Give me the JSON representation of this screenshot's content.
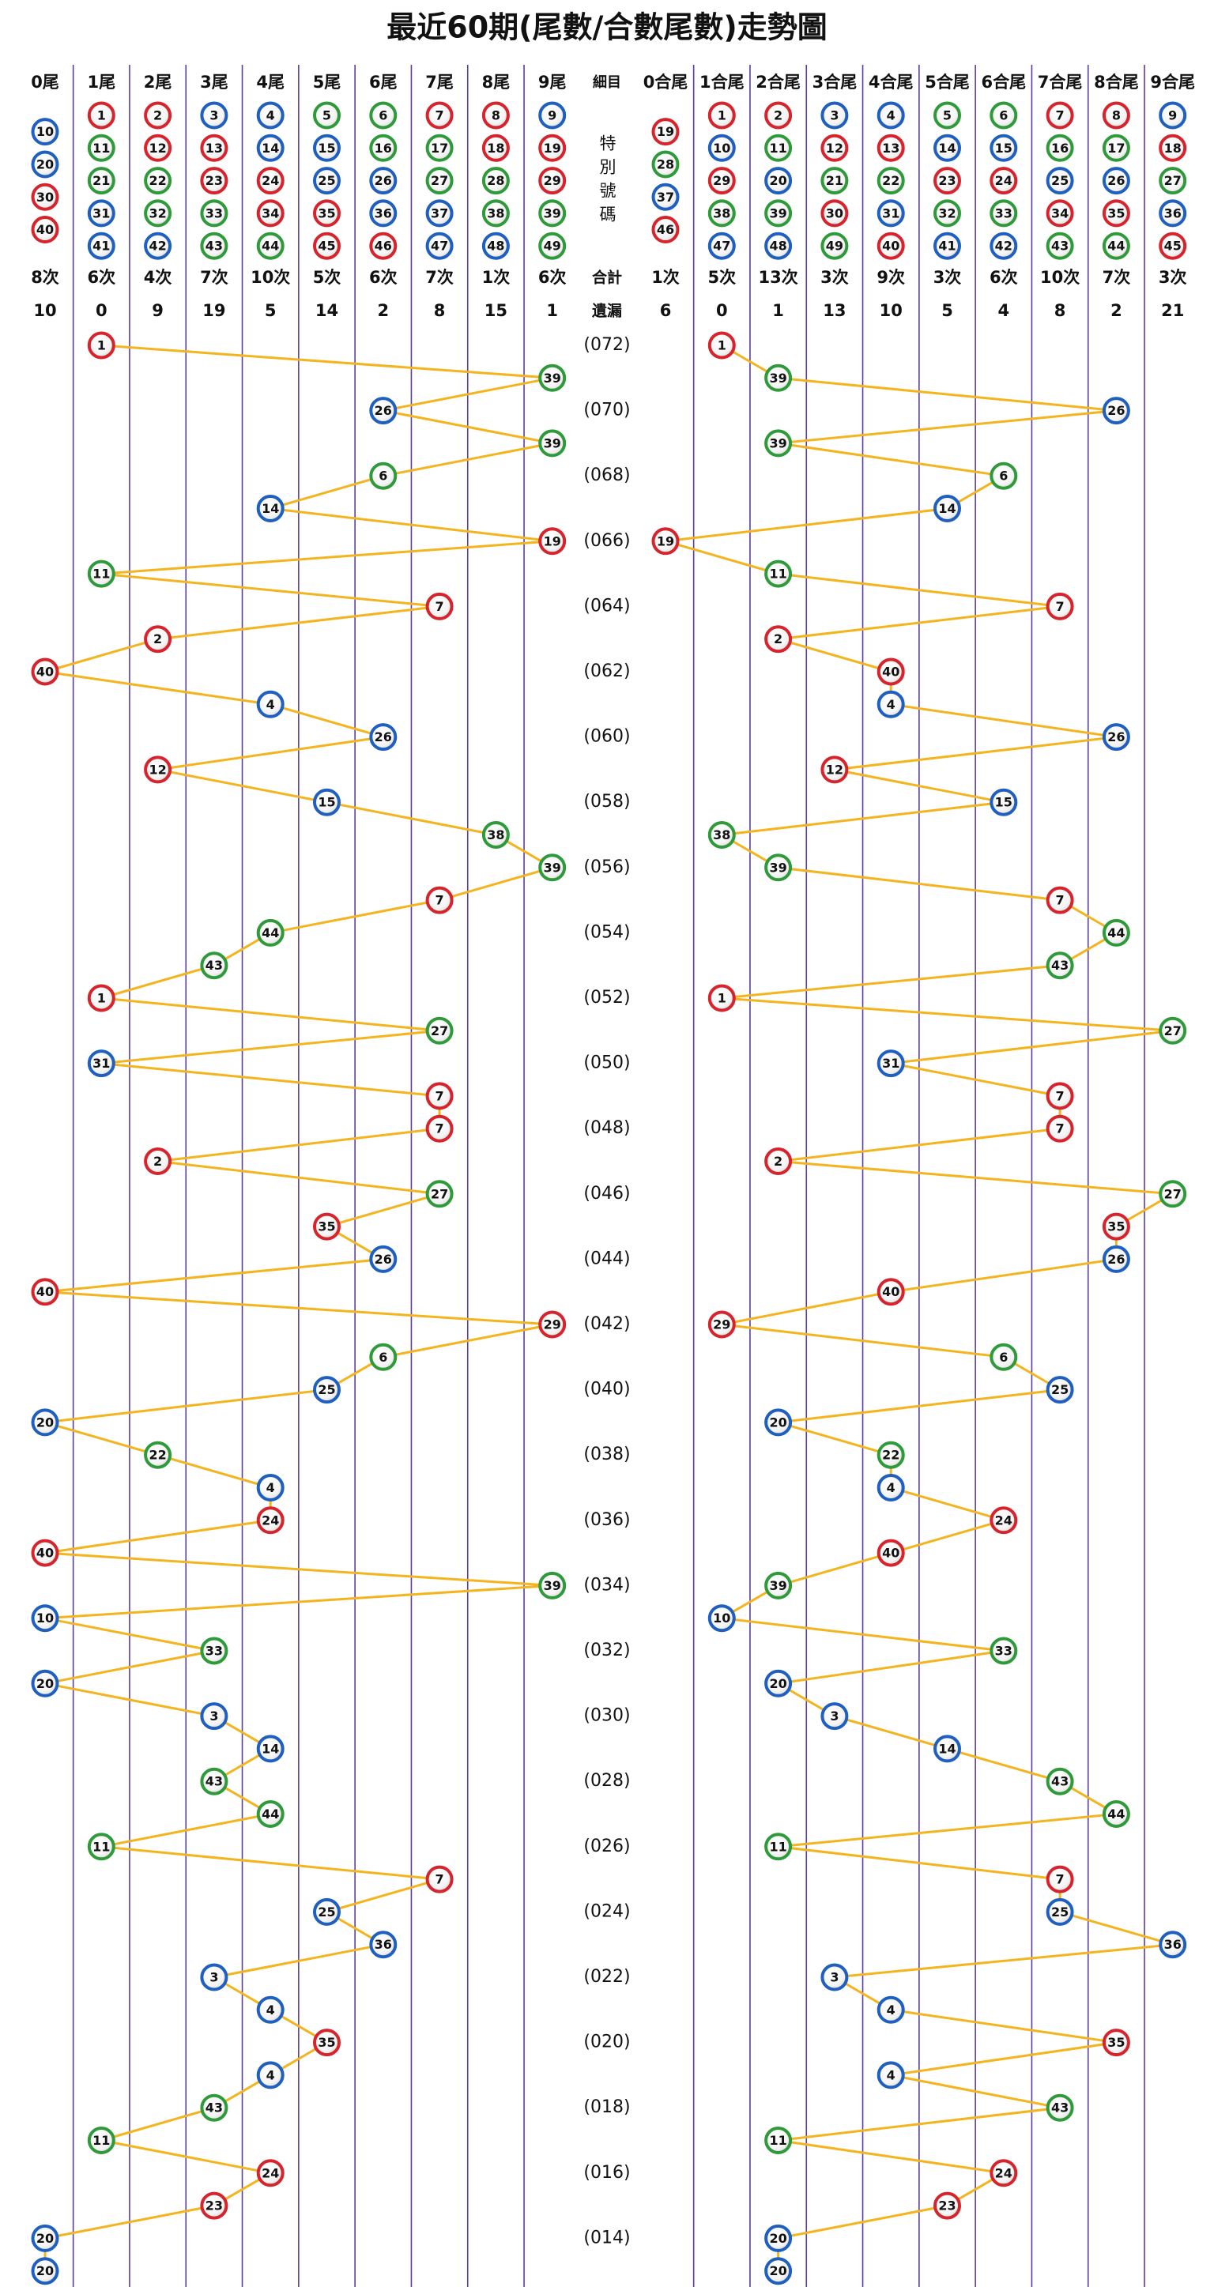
{
  "title": "最近60期(尾數/合數尾數)走勢圖",
  "left": {
    "columns": [
      {
        "header": "0尾",
        "numbers": [
          10,
          20,
          30,
          40
        ],
        "count": "8次",
        "miss": 10
      },
      {
        "header": "1尾",
        "numbers": [
          1,
          11,
          21,
          31,
          41
        ],
        "count": "6次",
        "miss": 0
      },
      {
        "header": "2尾",
        "numbers": [
          2,
          12,
          22,
          32,
          42
        ],
        "count": "4次",
        "miss": 9
      },
      {
        "header": "3尾",
        "numbers": [
          3,
          13,
          23,
          33,
          43
        ],
        "count": "7次",
        "miss": 19
      },
      {
        "header": "4尾",
        "numbers": [
          4,
          14,
          24,
          34,
          44
        ],
        "count": "10次",
        "miss": 5
      },
      {
        "header": "5尾",
        "numbers": [
          5,
          15,
          25,
          35,
          45
        ],
        "count": "5次",
        "miss": 14
      },
      {
        "header": "6尾",
        "numbers": [
          6,
          16,
          26,
          36,
          46
        ],
        "count": "6次",
        "miss": 2
      },
      {
        "header": "7尾",
        "numbers": [
          7,
          17,
          27,
          37,
          47
        ],
        "count": "7次",
        "miss": 8
      },
      {
        "header": "8尾",
        "numbers": [
          8,
          18,
          28,
          38,
          48
        ],
        "count": "1次",
        "miss": 15
      },
      {
        "header": "9尾",
        "numbers": [
          9,
          19,
          29,
          39,
          49
        ],
        "count": "6次",
        "miss": 1
      }
    ]
  },
  "middle": {
    "header": "細目",
    "special": "特別號碼",
    "count_label": "合計",
    "miss_label": "遺漏"
  },
  "right": {
    "columns": [
      {
        "header": "0合尾",
        "numbers": [
          19,
          28,
          37,
          46
        ],
        "count": "1次",
        "miss": 6
      },
      {
        "header": "1合尾",
        "numbers": [
          1,
          10,
          29,
          38,
          47
        ],
        "count": "5次",
        "miss": 0
      },
      {
        "header": "2合尾",
        "numbers": [
          2,
          11,
          20,
          39,
          48
        ],
        "count": "13次",
        "miss": 1
      },
      {
        "header": "3合尾",
        "numbers": [
          3,
          12,
          21,
          30,
          49
        ],
        "count": "3次",
        "miss": 13
      },
      {
        "header": "4合尾",
        "numbers": [
          4,
          13,
          22,
          31,
          40
        ],
        "count": "9次",
        "miss": 10
      },
      {
        "header": "5合尾",
        "numbers": [
          5,
          14,
          23,
          32,
          41
        ],
        "count": "3次",
        "miss": 5
      },
      {
        "header": "6合尾",
        "numbers": [
          6,
          15,
          24,
          33,
          42
        ],
        "count": "6次",
        "miss": 4
      },
      {
        "header": "7合尾",
        "numbers": [
          7,
          16,
          25,
          34,
          43
        ],
        "count": "10次",
        "miss": 8
      },
      {
        "header": "8合尾",
        "numbers": [
          8,
          17,
          26,
          35,
          44
        ],
        "count": "7次",
        "miss": 2
      },
      {
        "header": "9合尾",
        "numbers": [
          9,
          18,
          27,
          36,
          45
        ],
        "count": "3次",
        "miss": 21
      }
    ]
  },
  "draws": [
    {
      "period": "(072)",
      "number": 1
    },
    {
      "period": null,
      "number": 39
    },
    {
      "period": "(070)",
      "number": 26
    },
    {
      "period": null,
      "number": 39
    },
    {
      "period": "(068)",
      "number": 6
    },
    {
      "period": null,
      "number": 14
    },
    {
      "period": "(066)",
      "number": 19
    },
    {
      "period": null,
      "number": 11
    },
    {
      "period": "(064)",
      "number": 7
    },
    {
      "period": null,
      "number": 2
    },
    {
      "period": "(062)",
      "number": 40
    },
    {
      "period": null,
      "number": 4
    },
    {
      "period": "(060)",
      "number": 26
    },
    {
      "period": null,
      "number": 12
    },
    {
      "period": "(058)",
      "number": 15
    },
    {
      "period": null,
      "number": 38
    },
    {
      "period": "(056)",
      "number": 39
    },
    {
      "period": null,
      "number": 7
    },
    {
      "period": "(054)",
      "number": 44
    },
    {
      "period": null,
      "number": 43
    },
    {
      "period": "(052)",
      "number": 1
    },
    {
      "period": null,
      "number": 27
    },
    {
      "period": "(050)",
      "number": 31
    },
    {
      "period": null,
      "number": 7
    },
    {
      "period": "(048)",
      "number": 7
    },
    {
      "period": null,
      "number": 2
    },
    {
      "period": "(046)",
      "number": 27
    },
    {
      "period": null,
      "number": 35
    },
    {
      "period": "(044)",
      "number": 26
    },
    {
      "period": null,
      "number": 40
    },
    {
      "period": "(042)",
      "number": 29
    },
    {
      "period": null,
      "number": 6
    },
    {
      "period": "(040)",
      "number": 25
    },
    {
      "period": null,
      "number": 20
    },
    {
      "period": "(038)",
      "number": 22
    },
    {
      "period": null,
      "number": 4
    },
    {
      "period": "(036)",
      "number": 24
    },
    {
      "period": null,
      "number": 40
    },
    {
      "period": "(034)",
      "number": 39
    },
    {
      "period": null,
      "number": 10
    },
    {
      "period": "(032)",
      "number": 33
    },
    {
      "period": null,
      "number": 20
    },
    {
      "period": "(030)",
      "number": 3
    },
    {
      "period": null,
      "number": 14
    },
    {
      "period": "(028)",
      "number": 43
    },
    {
      "period": null,
      "number": 44
    },
    {
      "period": "(026)",
      "number": 11
    },
    {
      "period": null,
      "number": 7
    },
    {
      "period": "(024)",
      "number": 25
    },
    {
      "period": null,
      "number": 36
    },
    {
      "period": "(022)",
      "number": 3
    },
    {
      "period": null,
      "number": 4
    },
    {
      "period": "(020)",
      "number": 35
    },
    {
      "period": null,
      "number": 4
    },
    {
      "period": "(018)",
      "number": 43
    },
    {
      "period": null,
      "number": 11
    },
    {
      "period": "(016)",
      "number": 24
    },
    {
      "period": null,
      "number": 23
    },
    {
      "period": "(014)",
      "number": 20
    },
    {
      "period": null,
      "number": 20
    }
  ],
  "color_groups": [
    {
      "color": "#d7232c",
      "numbers": [
        1,
        2,
        7,
        8,
        12,
        13,
        18,
        19,
        23,
        24,
        29,
        30,
        34,
        35,
        40,
        45,
        46
      ]
    },
    {
      "color": "#1f5fc0",
      "numbers": [
        3,
        4,
        9,
        10,
        14,
        15,
        20,
        25,
        26,
        31,
        36,
        37,
        41,
        42,
        47,
        48
      ]
    },
    {
      "color": "#2f9a3a",
      "numbers": [
        5,
        6,
        11,
        16,
        17,
        21,
        22,
        27,
        28,
        32,
        33,
        38,
        39,
        43,
        44,
        49
      ]
    }
  ],
  "line_color": "#f4b41e"
}
